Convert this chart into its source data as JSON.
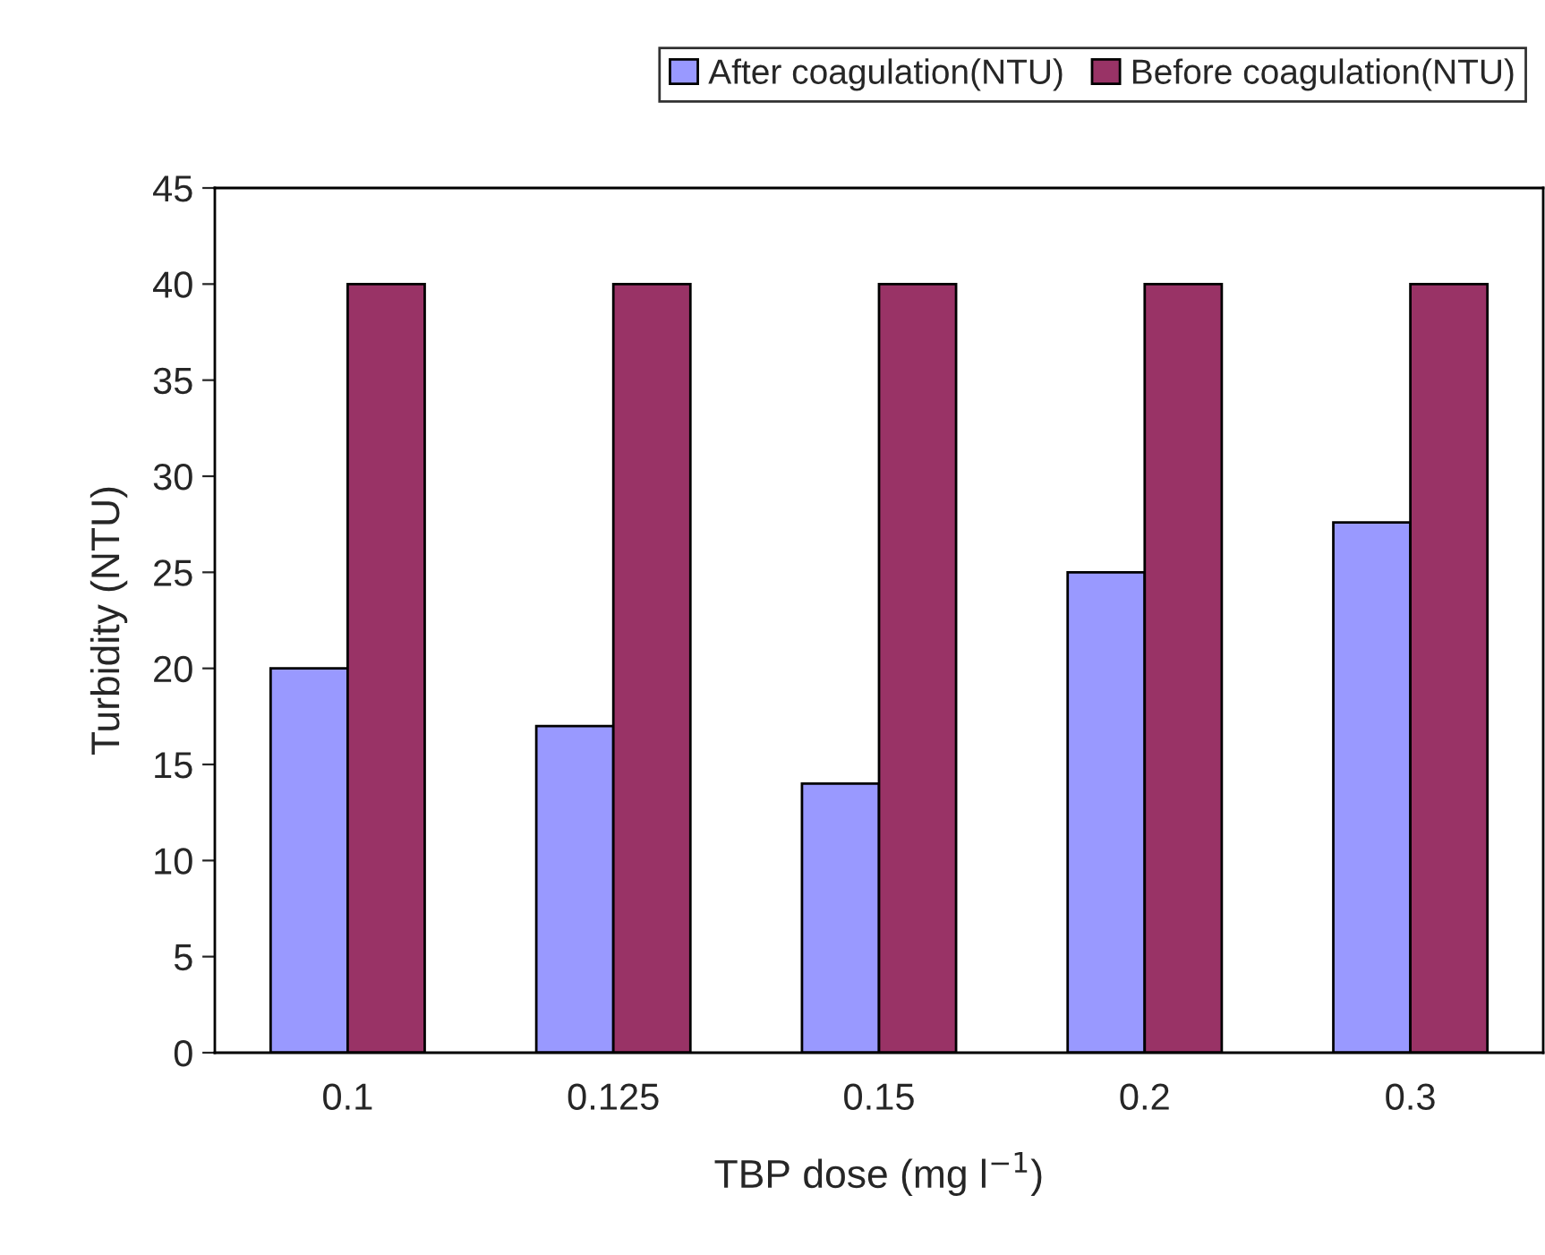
{
  "chart_data": {
    "type": "bar",
    "xlabel": "TBP dose (mg l$^{−1}$)",
    "ylabel": "Turbidity (NTU)",
    "categories": [
      "0.1",
      "0.125",
      "0.15",
      "0.2",
      "0.3"
    ],
    "series": [
      {
        "name": "After coagulation(NTU)",
        "color": "#9999ff",
        "values": [
          20,
          17,
          14,
          25,
          27.6
        ]
      },
      {
        "name": "Before coagulation(NTU)",
        "color": "#993366",
        "values": [
          40,
          40,
          40,
          40,
          40
        ]
      }
    ],
    "ylim": [
      0,
      45
    ],
    "yticks": [
      0,
      5,
      10,
      15,
      20,
      25,
      30,
      35,
      40,
      45
    ],
    "grid": false,
    "legend": "top right"
  }
}
